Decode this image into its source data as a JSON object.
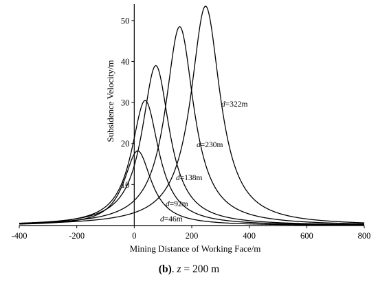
{
  "chart_data": {
    "type": "line",
    "xlabel": "Mining Distance of Working Face/m",
    "ylabel": "Subsidence Velocity/m",
    "xlim": [
      -400,
      800
    ],
    "ylim": [
      0,
      54
    ],
    "x_ticks": [
      "-400",
      "-200",
      "0",
      "200",
      "400",
      "600",
      "800"
    ],
    "y_ticks": [
      "10",
      "20",
      "30",
      "40",
      "50"
    ],
    "grid": false,
    "series": [
      {
        "name": "d=46m",
        "label_prefix": "d",
        "label_suffix": "=46m",
        "peak_x": 12,
        "peak_y": 18.2,
        "half_width": 58
      },
      {
        "name": "d=92m",
        "label_prefix": "d",
        "label_suffix": "=92m",
        "peak_x": 38,
        "peak_y": 30.5,
        "half_width": 58
      },
      {
        "name": "d=138m",
        "label_prefix": "d",
        "label_suffix": "=138m",
        "peak_x": 75,
        "peak_y": 39,
        "half_width": 58
      },
      {
        "name": "d=230m",
        "label_prefix": "d",
        "label_suffix": "=230m",
        "peak_x": 158,
        "peak_y": 48.5,
        "half_width": 60
      },
      {
        "name": "d=322m",
        "label_prefix": "d",
        "label_suffix": "=322m",
        "peak_x": 248,
        "peak_y": 53.5,
        "half_width": 62
      }
    ]
  },
  "caption": {
    "part": "(b)",
    "sep": ". ",
    "var": "z",
    "rest": " = 200 m"
  }
}
